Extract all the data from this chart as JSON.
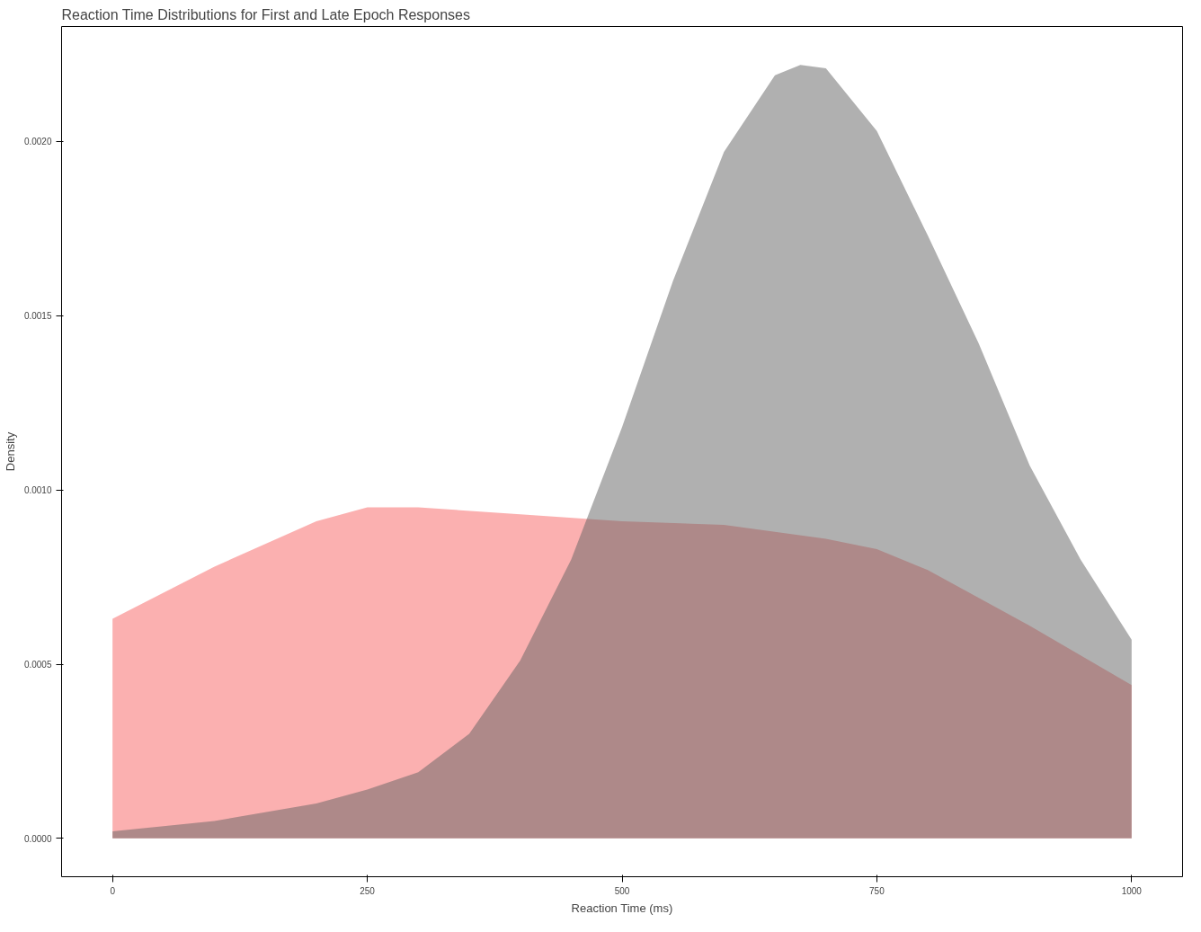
{
  "chart_data": {
    "type": "area",
    "title": "Reaction Time Distributions for First and Late Epoch Responses",
    "xlabel": "Reaction Time (ms)",
    "ylabel": "Density",
    "xlim": [
      -50,
      1050
    ],
    "ylim": [
      -0.00011,
      0.00233
    ],
    "xticks": [
      0,
      250,
      500,
      750,
      1000
    ],
    "yticks": [
      {
        "value": 0,
        "label": "0.0000"
      },
      {
        "value": 0.0005,
        "label": "0.0005"
      },
      {
        "value": 0.001,
        "label": "0.0010"
      },
      {
        "value": 0.0015,
        "label": "0.0015"
      },
      {
        "value": 0.002,
        "label": "0.0020"
      }
    ],
    "grid": false,
    "series": [
      {
        "color": "#f76161",
        "x": [
          0,
          100,
          200,
          250,
          300,
          400,
          500,
          600,
          700,
          750,
          800,
          900,
          1000
        ],
        "values": [
          0.00063,
          0.00078,
          0.00091,
          0.00095,
          0.00095,
          0.00093,
          0.00091,
          0.0009,
          0.00086,
          0.00083,
          0.00077,
          0.00061,
          0.00044
        ]
      },
      {
        "color": "#616161",
        "x": [
          0,
          100,
          200,
          250,
          300,
          350,
          400,
          450,
          500,
          550,
          600,
          650,
          675,
          700,
          750,
          800,
          850,
          900,
          950,
          1000
        ],
        "values": [
          2e-05,
          5e-05,
          0.0001,
          0.00014,
          0.00019,
          0.0003,
          0.00051,
          0.0008,
          0.00118,
          0.0016,
          0.00197,
          0.00219,
          0.00222,
          0.00221,
          0.00203,
          0.00173,
          0.00142,
          0.00107,
          0.0008,
          0.00057
        ]
      }
    ]
  }
}
